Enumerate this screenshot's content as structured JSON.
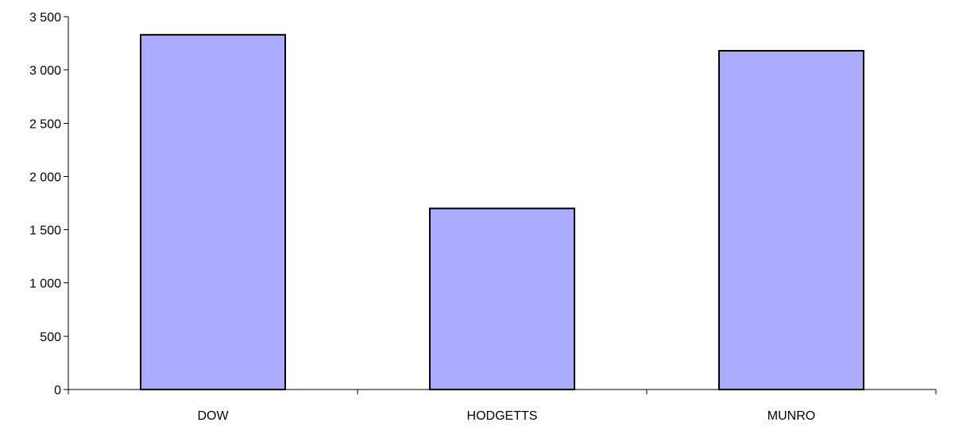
{
  "chart_data": {
    "type": "bar",
    "title": "",
    "xlabel": "",
    "ylabel": "",
    "categories": [
      "DOW",
      "HODGETTS",
      "MUNRO"
    ],
    "values": [
      3330,
      1700,
      3180
    ],
    "ylim": [
      0,
      3500
    ],
    "yticks": [
      0,
      500,
      1000,
      1500,
      2000,
      2500,
      3000,
      3500
    ],
    "ytick_labels": [
      "0",
      "500",
      "1 000",
      "1 500",
      "2 000",
      "2 500",
      "3 000",
      "3 500"
    ],
    "grid": false,
    "legend": "none",
    "colors": {
      "bar_fill": "#aaaaff",
      "bar_stroke": "#000000",
      "axis": "#000000"
    }
  }
}
